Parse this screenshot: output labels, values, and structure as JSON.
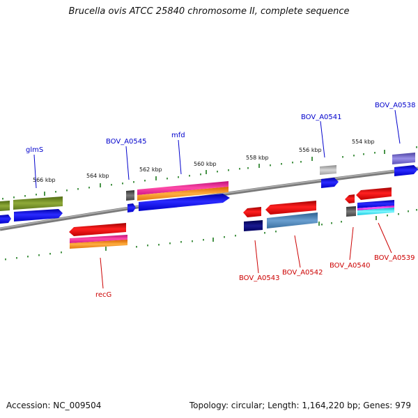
{
  "title": "Brucella ovis ATCC 25840 chromosome II, complete sequence",
  "footer": {
    "accession": "Accession: NC_009504",
    "topology": "Topology: circular; Length: 1,164,220 bp; Genes: 979"
  },
  "scale_labels": [
    "566 kbp",
    "564 kbp",
    "562 kbp",
    "560 kbp",
    "558 kbp",
    "556 kbp",
    "554 kbp"
  ],
  "genes_top": [
    "glmS",
    "BOV_A0545",
    "mfd",
    "BOV_A0541",
    "BOV_A0538"
  ],
  "genes_bottom": [
    "recG",
    "BOV_A0543",
    "BOV_A0542",
    "BOV_A0540",
    "BOV_A0539"
  ],
  "colors": {
    "backbone": "#888888",
    "forward_label": "#0000cc",
    "reverse_label": "#cc0000",
    "tick": "#1a7a1a"
  }
}
